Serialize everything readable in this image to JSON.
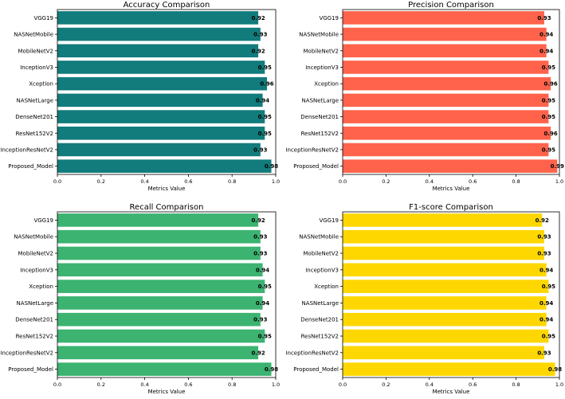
{
  "chart_data": [
    {
      "type": "bar",
      "orientation": "horizontal",
      "title": "Accuracy Comparison",
      "xlabel": "Metrics Value",
      "ylabel": "",
      "xlim": [
        0,
        1.0
      ],
      "xticks": [
        "0.0",
        "0.2",
        "0.4",
        "0.6",
        "0.8",
        "1.0"
      ],
      "color": "#127B7B",
      "categories": [
        "VGG19",
        "NASNetMobile",
        "MobileNetV2",
        "InceptionV3",
        "Xception",
        "NASNetLarge",
        "DenseNet201",
        "ResNet152V2",
        "InceptionResNetV2",
        "Proposed_Model"
      ],
      "values": [
        0.92,
        0.93,
        0.92,
        0.95,
        0.96,
        0.94,
        0.95,
        0.95,
        0.93,
        0.98
      ],
      "labels": [
        "0.92",
        "0.93",
        "0.92",
        "0.95",
        "0.96",
        "0.94",
        "0.95",
        "0.95",
        "0.93",
        "0.98"
      ]
    },
    {
      "type": "bar",
      "orientation": "horizontal",
      "title": "Precision Comparison",
      "xlabel": "Metrics Value",
      "ylabel": "",
      "xlim": [
        0,
        1.0
      ],
      "xticks": [
        "0.0",
        "0.2",
        "0.4",
        "0.6",
        "0.8",
        "1.0"
      ],
      "color": "#FF634C",
      "categories": [
        "VGG19",
        "NASNetMobile",
        "MobileNetV2",
        "InceptionV3",
        "Xception",
        "NASNetLarge",
        "DenseNet201",
        "ResNet152V2",
        "InceptionResNetV2",
        "Proposed_Model"
      ],
      "values": [
        0.93,
        0.94,
        0.94,
        0.95,
        0.96,
        0.95,
        0.95,
        0.96,
        0.95,
        0.99
      ],
      "labels": [
        "0.93",
        "0.94",
        "0.94",
        "0.95",
        "0.96",
        "0.95",
        "0.95",
        "0.96",
        "0.95",
        "0.99"
      ]
    },
    {
      "type": "bar",
      "orientation": "horizontal",
      "title": "Recall Comparison",
      "xlabel": "Metrics Value",
      "ylabel": "",
      "xlim": [
        0,
        1.0
      ],
      "xticks": [
        "0.0",
        "0.2",
        "0.4",
        "0.6",
        "0.8",
        "1.0"
      ],
      "color": "#3CB371",
      "categories": [
        "VGG19",
        "NASNetMobile",
        "MobileNetV2",
        "InceptionV3",
        "Xception",
        "NASNetLarge",
        "DenseNet201",
        "ResNet152V2",
        "InceptionResNetV2",
        "Proposed_Model"
      ],
      "values": [
        0.92,
        0.93,
        0.93,
        0.94,
        0.95,
        0.94,
        0.93,
        0.95,
        0.92,
        0.98
      ],
      "labels": [
        "0.92",
        "0.93",
        "0.93",
        "0.94",
        "0.95",
        "0.94",
        "0.93",
        "0.95",
        "0.92",
        "0.98"
      ]
    },
    {
      "type": "bar",
      "orientation": "horizontal",
      "title": "F1-score Comparison",
      "xlabel": "Metrics Value",
      "ylabel": "",
      "xlim": [
        0,
        1.0
      ],
      "xticks": [
        "0.0",
        "0.2",
        "0.4",
        "0.6",
        "0.8",
        "1.0"
      ],
      "color": "#FFD700",
      "categories": [
        "VGG19",
        "NASNetMobile",
        "MobileNetV2",
        "InceptionV3",
        "Xception",
        "NASNetLarge",
        "DenseNet201",
        "ResNet152V2",
        "InceptionResNetV2",
        "Proposed_Model"
      ],
      "values": [
        0.92,
        0.93,
        0.93,
        0.94,
        0.95,
        0.94,
        0.94,
        0.95,
        0.93,
        0.98
      ],
      "labels": [
        "0.92",
        "0.93",
        "0.93",
        "0.94",
        "0.95",
        "0.94",
        "0.94",
        "0.95",
        "0.93",
        "0.98"
      ]
    }
  ]
}
